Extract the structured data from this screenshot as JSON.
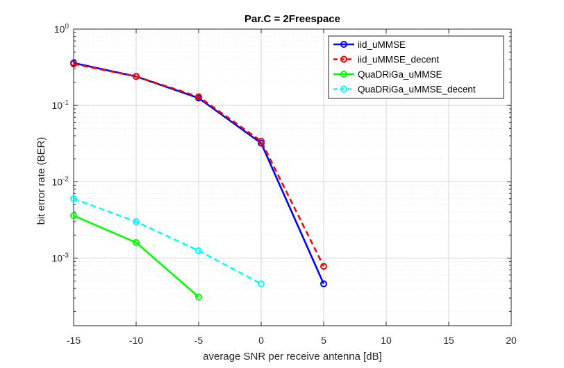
{
  "chart_data": {
    "type": "line",
    "title": "Par.C = 2Freespace",
    "xlabel": "average SNR per receive antenna [dB]",
    "ylabel": "bit error rate (BER)",
    "xlim": [
      -15,
      20
    ],
    "ylim": [
      0.00013,
      1
    ],
    "yscale": "log",
    "grid": true,
    "legend_position": "top-right",
    "x_ticks": [
      -15,
      -10,
      -5,
      0,
      5,
      10,
      15,
      20
    ],
    "x_tick_labels": [
      "-15",
      "-10",
      "-5",
      "0",
      "5",
      "10",
      "15",
      "20"
    ],
    "y_ticks": [
      0.001,
      0.01,
      0.1,
      1
    ],
    "y_tick_labels": [
      {
        "base": "10",
        "exp": "-3"
      },
      {
        "base": "10",
        "exp": "-2"
      },
      {
        "base": "10",
        "exp": "-1"
      },
      {
        "base": "10",
        "exp": "0"
      }
    ],
    "series": [
      {
        "name": "iid_uMMSE",
        "color": "#0000ff",
        "dash": "solid",
        "marker": "circle",
        "x": [
          -15,
          -10,
          -5,
          0,
          5
        ],
        "y": [
          0.36,
          0.24,
          0.125,
          0.032,
          0.00046
        ]
      },
      {
        "name": "iid_uMMSE_decent",
        "color": "#ff0000",
        "dash": "dashed",
        "marker": "circle",
        "x": [
          -15,
          -10,
          -5,
          0,
          5
        ],
        "y": [
          0.35,
          0.24,
          0.13,
          0.034,
          0.00078
        ]
      },
      {
        "name": "QuaDRiGa_uMMSE",
        "color": "#00ff00",
        "dash": "solid",
        "marker": "circle",
        "x": [
          -15,
          -10,
          -5
        ],
        "y": [
          0.0036,
          0.0016,
          0.00031
        ]
      },
      {
        "name": "QuaDRiGa_uMMSE_decent",
        "color": "#00ffff",
        "dash": "dashed",
        "marker": "circle",
        "x": [
          -15,
          -10,
          -5,
          0
        ],
        "y": [
          0.006,
          0.003,
          0.00125,
          0.00046
        ]
      }
    ]
  }
}
